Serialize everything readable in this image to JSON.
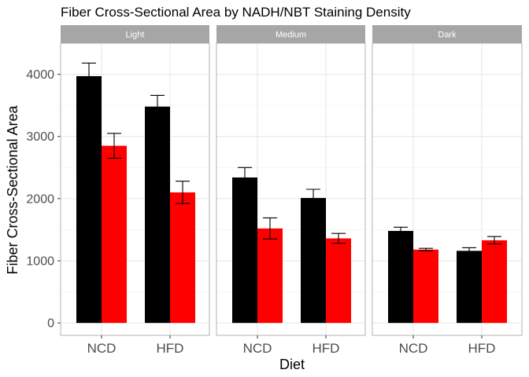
{
  "chart_data": {
    "type": "bar",
    "title": "Fiber Cross-Sectional Area by NADH/NBT Staining Density",
    "xlabel": "Diet",
    "ylabel": "Fiber Cross-Sectional Area",
    "ylim": [
      -200,
      4500
    ],
    "yticks": [
      0,
      1000,
      2000,
      3000,
      4000
    ],
    "categories": [
      "NCD",
      "HFD"
    ],
    "facets": [
      {
        "label": "Light",
        "series": [
          {
            "color": "#000000",
            "values": [
              3970,
              3480
            ],
            "err_low": [
              3760,
              3300
            ],
            "err_high": [
              4180,
              3660
            ]
          },
          {
            "color": "#ff0000",
            "values": [
              2850,
              2100
            ],
            "err_low": [
              2650,
              1920
            ],
            "err_high": [
              3050,
              2280
            ]
          }
        ]
      },
      {
        "label": "Medium",
        "series": [
          {
            "color": "#000000",
            "values": [
              2340,
              2010
            ],
            "err_low": [
              2180,
              1870
            ],
            "err_high": [
              2500,
              2150
            ]
          },
          {
            "color": "#ff0000",
            "values": [
              1520,
              1360
            ],
            "err_low": [
              1350,
              1280
            ],
            "err_high": [
              1690,
              1440
            ]
          }
        ]
      },
      {
        "label": "Dark",
        "series": [
          {
            "color": "#000000",
            "values": [
              1480,
              1160
            ],
            "err_low": [
              1420,
              1110
            ],
            "err_high": [
              1540,
              1210
            ]
          },
          {
            "color": "#ff0000",
            "values": [
              1180,
              1330
            ],
            "err_low": [
              1160,
              1270
            ],
            "err_high": [
              1200,
              1390
            ]
          }
        ]
      }
    ],
    "grid": true,
    "legend": "none"
  }
}
